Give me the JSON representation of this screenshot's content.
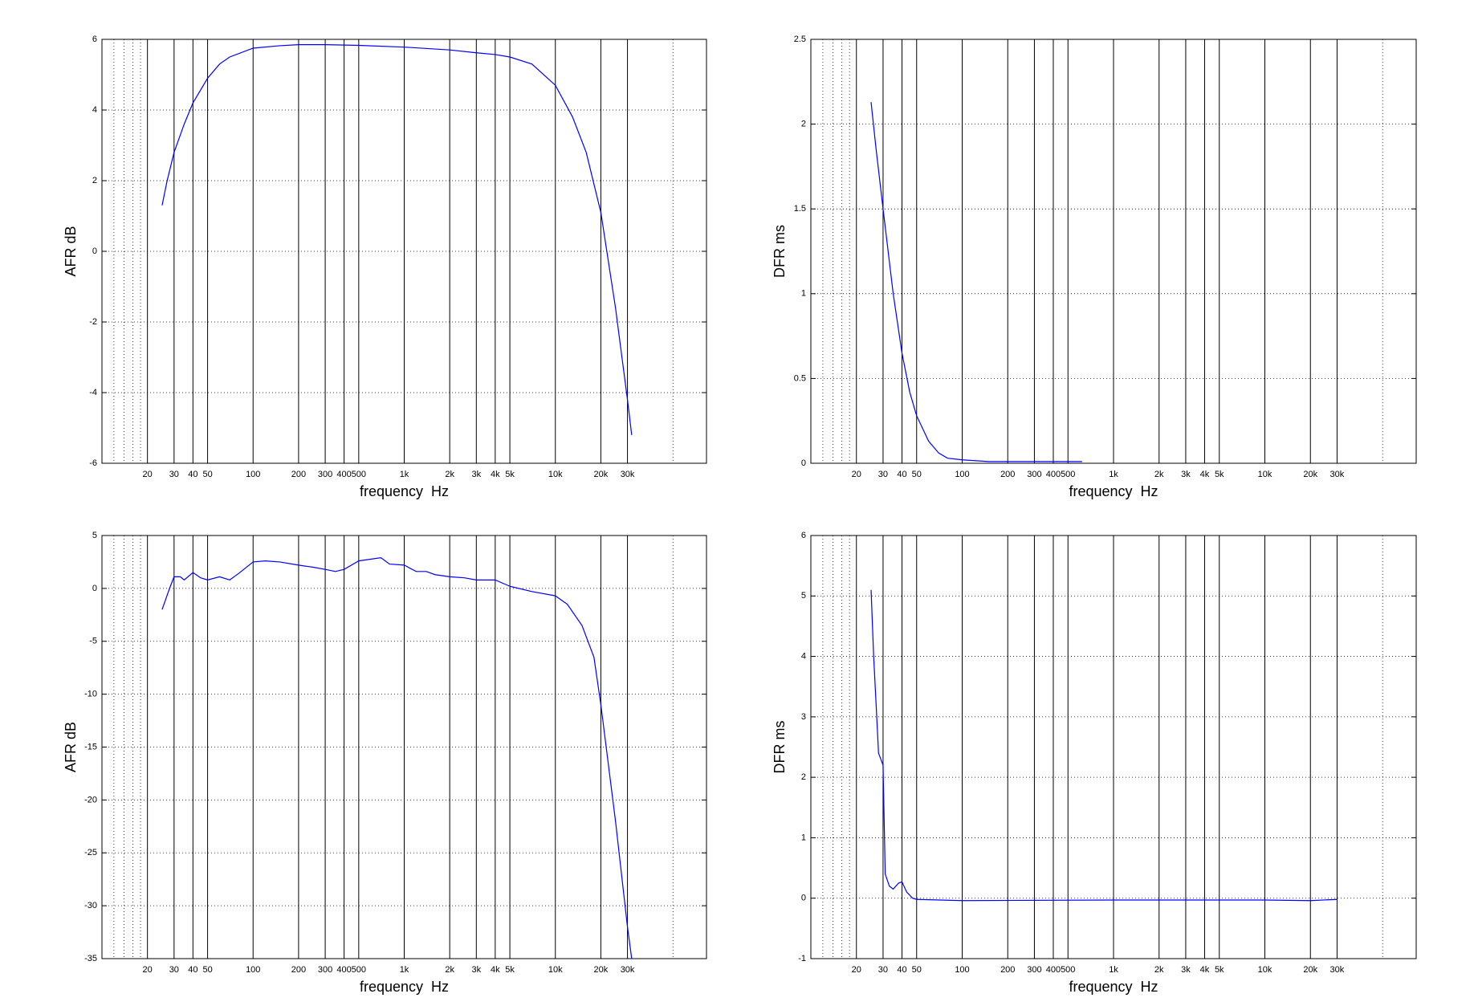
{
  "chart_data": [
    {
      "type": "line",
      "ylabel": "AFR dB",
      "xlabel": "frequency  Hz",
      "xscale": "log",
      "color": "#0000ff",
      "xlim": [
        10,
        100000
      ],
      "xticks": [
        20,
        30,
        40,
        50,
        100,
        200,
        300,
        400,
        500,
        {
          "value": 1000,
          "label": "1k"
        },
        {
          "value": 2000,
          "label": "2k"
        },
        {
          "value": 3000,
          "label": "3k"
        },
        {
          "value": 4000,
          "label": "4k"
        },
        {
          "value": 5000,
          "label": "5k"
        },
        {
          "value": 10000,
          "label": "10k"
        },
        {
          "value": 20000,
          "label": "20k"
        },
        {
          "value": 30000,
          "label": "30k"
        }
      ],
      "xminor": [
        12,
        14,
        16,
        18,
        60000
      ],
      "ylim": [
        -6,
        6
      ],
      "yticks": [
        -6,
        -4,
        -2,
        0,
        2,
        4,
        6
      ],
      "grid": true,
      "x": [
        25,
        27,
        30,
        35,
        40,
        50,
        60,
        70,
        100,
        150,
        200,
        300,
        500,
        1000,
        2000,
        3000,
        4000,
        5000,
        7000,
        10000,
        13000,
        16000,
        20000,
        25000,
        30000,
        32000
      ],
      "values": [
        1.3,
        2.0,
        2.8,
        3.6,
        4.2,
        4.9,
        5.3,
        5.5,
        5.75,
        5.82,
        5.85,
        5.85,
        5.83,
        5.78,
        5.7,
        5.62,
        5.57,
        5.5,
        5.3,
        4.7,
        3.8,
        2.8,
        1.1,
        -1.6,
        -4.2,
        -5.2
      ]
    },
    {
      "type": "line",
      "ylabel": "DFR ms",
      "xlabel": "frequency  Hz",
      "xscale": "log",
      "color": "#0000ff",
      "xlim": [
        10,
        100000
      ],
      "xticks": [
        20,
        30,
        40,
        50,
        100,
        200,
        300,
        400,
        500,
        {
          "value": 1000,
          "label": "1k"
        },
        {
          "value": 2000,
          "label": "2k"
        },
        {
          "value": 3000,
          "label": "3k"
        },
        {
          "value": 4000,
          "label": "4k"
        },
        {
          "value": 5000,
          "label": "5k"
        },
        {
          "value": 10000,
          "label": "10k"
        },
        {
          "value": 20000,
          "label": "20k"
        },
        {
          "value": 30000,
          "label": "30k"
        }
      ],
      "xminor": [
        12,
        14,
        16,
        18,
        60000
      ],
      "ylim": [
        0,
        2.5
      ],
      "yticks": [
        0,
        0.5,
        1,
        1.5,
        2,
        2.5
      ],
      "grid": true,
      "x": [
        25,
        27,
        30,
        35,
        40,
        45,
        50,
        60,
        70,
        80,
        100,
        150,
        300,
        620
      ],
      "values": [
        2.13,
        1.85,
        1.5,
        1.0,
        0.65,
        0.42,
        0.28,
        0.13,
        0.06,
        0.03,
        0.02,
        0.01,
        0.01,
        0.01
      ]
    },
    {
      "type": "line",
      "ylabel": "AFR dB",
      "xlabel": "frequency  Hz",
      "xscale": "log",
      "color": "#0000ff",
      "xlim": [
        10,
        100000
      ],
      "xticks": [
        20,
        30,
        40,
        50,
        100,
        200,
        300,
        400,
        500,
        {
          "value": 1000,
          "label": "1k"
        },
        {
          "value": 2000,
          "label": "2k"
        },
        {
          "value": 3000,
          "label": "3k"
        },
        {
          "value": 4000,
          "label": "4k"
        },
        {
          "value": 5000,
          "label": "5k"
        },
        {
          "value": 10000,
          "label": "10k"
        },
        {
          "value": 20000,
          "label": "20k"
        },
        {
          "value": 30000,
          "label": "30k"
        }
      ],
      "xminor": [
        12,
        14,
        16,
        18,
        60000
      ],
      "ylim": [
        -35,
        5
      ],
      "yticks": [
        -35,
        -30,
        -25,
        -20,
        -15,
        -10,
        -5,
        0,
        5
      ],
      "grid": true,
      "x": [
        25,
        28,
        30,
        33,
        35,
        40,
        45,
        50,
        60,
        70,
        80,
        100,
        120,
        150,
        200,
        250,
        300,
        350,
        400,
        500,
        700,
        800,
        1000,
        1200,
        1400,
        1600,
        2000,
        2500,
        3000,
        4000,
        5000,
        7000,
        10000,
        12000,
        15000,
        18000,
        20000,
        25000,
        30000,
        32000
      ],
      "values": [
        -2,
        0,
        1.1,
        1.1,
        0.8,
        1.5,
        1.0,
        0.8,
        1.1,
        0.8,
        1.4,
        2.5,
        2.6,
        2.5,
        2.2,
        2.0,
        1.8,
        1.6,
        1.8,
        2.6,
        2.9,
        2.3,
        2.2,
        1.6,
        1.6,
        1.3,
        1.1,
        1.0,
        0.8,
        0.8,
        0.2,
        -0.3,
        -0.7,
        -1.5,
        -3.5,
        -6.5,
        -11,
        -22,
        -32,
        -35
      ]
    },
    {
      "type": "line",
      "ylabel": "DFR ms",
      "xlabel": "frequency  Hz",
      "xscale": "log",
      "color": "#0000ff",
      "xlim": [
        10,
        100000
      ],
      "xticks": [
        20,
        30,
        40,
        50,
        100,
        200,
        300,
        400,
        500,
        {
          "value": 1000,
          "label": "1k"
        },
        {
          "value": 2000,
          "label": "2k"
        },
        {
          "value": 3000,
          "label": "3k"
        },
        {
          "value": 4000,
          "label": "4k"
        },
        {
          "value": 5000,
          "label": "5k"
        },
        {
          "value": 10000,
          "label": "10k"
        },
        {
          "value": 20000,
          "label": "20k"
        },
        {
          "value": 30000,
          "label": "30k"
        }
      ],
      "xminor": [
        12,
        14,
        16,
        18,
        60000
      ],
      "ylim": [
        -1,
        6
      ],
      "yticks": [
        -1,
        0,
        1,
        2,
        3,
        4,
        5,
        6
      ],
      "grid": true,
      "x": [
        25,
        26,
        27,
        28,
        29,
        30,
        31,
        33,
        35,
        38,
        40,
        43,
        47,
        50,
        100,
        1000,
        10000,
        20000,
        30000
      ],
      "values": [
        5.1,
        4.0,
        3.2,
        2.4,
        2.3,
        2.2,
        0.4,
        0.2,
        0.15,
        0.25,
        0.27,
        0.1,
        0.0,
        -0.02,
        -0.04,
        -0.03,
        -0.03,
        -0.04,
        -0.02
      ]
    }
  ]
}
